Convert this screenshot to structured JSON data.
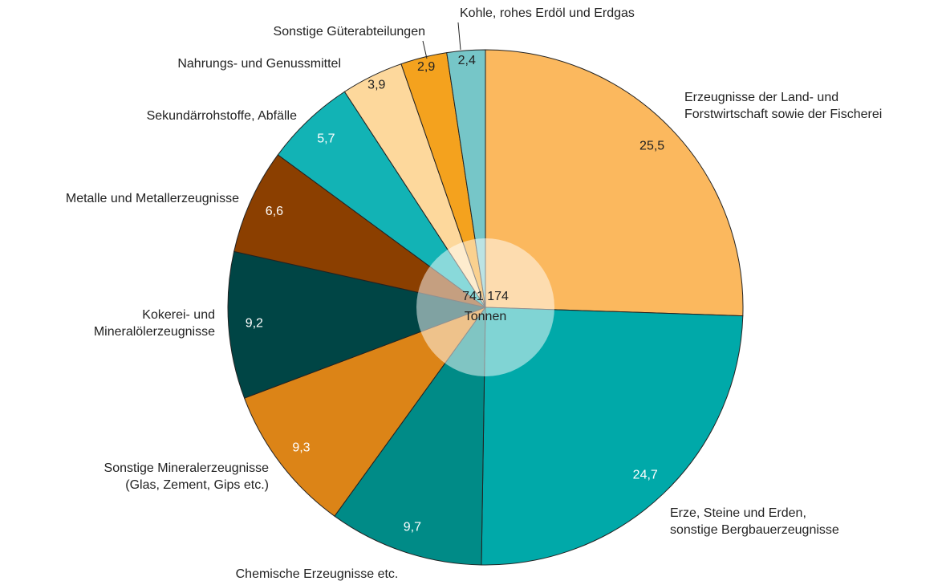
{
  "chart_data": {
    "type": "pie",
    "center_labels": [
      "741 174",
      "Tonnen"
    ],
    "categories": [
      [
        "Erzeugnisse der Land- und",
        "Forstwirtschaft sowie der Fischerei"
      ],
      [
        "Erze, Steine und Erden,",
        "sonstige Bergbauerzeugnisse"
      ],
      [
        "Chemische Erzeugnisse etc."
      ],
      [
        "Sonstige Mineralerzeugnisse",
        "(Glas, Zement, Gips etc.)"
      ],
      [
        "Kokerei- und",
        "Mineralölerzeugnisse"
      ],
      [
        "Metalle und Metallerzeugnisse"
      ],
      [
        "Sekundärrohstoffe, Abfälle"
      ],
      [
        "Nahrungs- und Genussmittel"
      ],
      [
        "Sonstige Güterabteilungen"
      ],
      [
        "Kohle, rohes Erdöl und Erdgas"
      ]
    ],
    "values": [
      25.5,
      24.7,
      9.7,
      9.3,
      9.2,
      6.6,
      5.7,
      3.9,
      2.9,
      2.4
    ],
    "value_labels": [
      "25,5",
      "24,7",
      "9,7",
      "9,3",
      "9,2",
      "6,6",
      "5,7",
      "3,9",
      "2,9",
      "2,4"
    ],
    "colors": [
      "#fbb85e",
      "#00a9a9",
      "#008b87",
      "#dc8417",
      "#004545",
      "#8b3f00",
      "#12b3b5",
      "#fdd89c",
      "#f4a21e",
      "#76c6c8"
    ]
  }
}
